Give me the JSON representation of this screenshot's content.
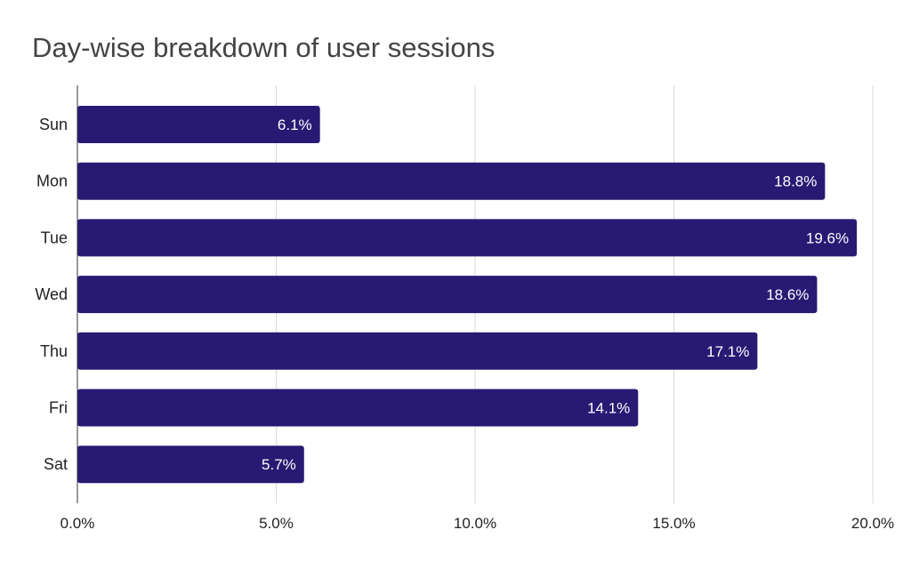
{
  "chart_data": {
    "type": "bar",
    "orientation": "horizontal",
    "title": "Day-wise breakdown of user sessions",
    "categories": [
      "Sun",
      "Mon",
      "Tue",
      "Wed",
      "Thu",
      "Fri",
      "Sat"
    ],
    "values": [
      6.1,
      18.8,
      19.6,
      18.6,
      17.1,
      14.1,
      5.7
    ],
    "data_labels": [
      "6.1%",
      "18.8%",
      "19.6%",
      "18.6%",
      "17.1%",
      "14.1%",
      "5.7%"
    ],
    "xlim": [
      0,
      20
    ],
    "xticks": [
      0,
      5,
      10,
      15,
      20
    ],
    "xtick_labels": [
      "0.0%",
      "5.0%",
      "10.0%",
      "15.0%",
      "20.0%"
    ],
    "xlabel": "",
    "ylabel": "",
    "grid": true,
    "legend": "none",
    "colors": {
      "bar": "#281A73",
      "grid": "#d9d9d9",
      "axis": "#333333"
    }
  }
}
